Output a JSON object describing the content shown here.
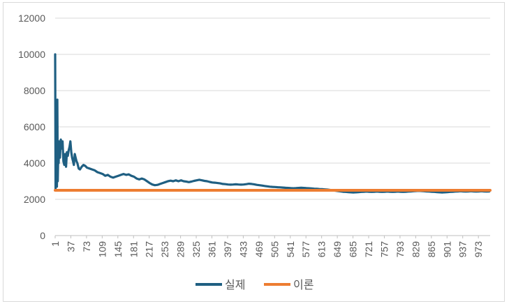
{
  "chart_data": {
    "type": "line",
    "title": "",
    "xlabel": "",
    "ylabel": "",
    "x_start": 1,
    "x_end": 1000,
    "x_tick_step": 36,
    "x_tick_labels": [
      "1",
      "37",
      "73",
      "109",
      "145",
      "181",
      "217",
      "253",
      "289",
      "325",
      "361",
      "397",
      "433",
      "469",
      "505",
      "541",
      "577",
      "613",
      "649",
      "685",
      "721",
      "757",
      "793",
      "829",
      "865",
      "901",
      "937",
      "973"
    ],
    "y_tick_labels": [
      "0",
      "2000",
      "4000",
      "6000",
      "8000",
      "10000",
      "12000"
    ],
    "ylim": [
      0,
      12000
    ],
    "grid": true,
    "legend_position": "bottom",
    "series": [
      {
        "name": "실제",
        "color": "#1f5f82",
        "points": [
          [
            1,
            10000
          ],
          [
            2,
            2600
          ],
          [
            3,
            3500
          ],
          [
            4,
            7400
          ],
          [
            5,
            2700
          ],
          [
            6,
            7500
          ],
          [
            7,
            3000
          ],
          [
            8,
            4500
          ],
          [
            9,
            4000
          ],
          [
            10,
            5200
          ],
          [
            12,
            4300
          ],
          [
            14,
            5300
          ],
          [
            16,
            4800
          ],
          [
            18,
            5200
          ],
          [
            20,
            4100
          ],
          [
            22,
            3900
          ],
          [
            24,
            4500
          ],
          [
            26,
            3800
          ],
          [
            28,
            4600
          ],
          [
            30,
            4400
          ],
          [
            32,
            4700
          ],
          [
            34,
            4900
          ],
          [
            36,
            5200
          ],
          [
            38,
            4600
          ],
          [
            40,
            4300
          ],
          [
            42,
            4100
          ],
          [
            44,
            3900
          ],
          [
            46,
            4500
          ],
          [
            48,
            4300
          ],
          [
            50,
            4100
          ],
          [
            52,
            4000
          ],
          [
            55,
            3700
          ],
          [
            58,
            3650
          ],
          [
            62,
            3800
          ],
          [
            66,
            3900
          ],
          [
            70,
            3850
          ],
          [
            74,
            3750
          ],
          [
            80,
            3700
          ],
          [
            86,
            3650
          ],
          [
            92,
            3600
          ],
          [
            98,
            3500
          ],
          [
            104,
            3450
          ],
          [
            110,
            3400
          ],
          [
            116,
            3300
          ],
          [
            122,
            3350
          ],
          [
            128,
            3250
          ],
          [
            134,
            3200
          ],
          [
            140,
            3250
          ],
          [
            146,
            3300
          ],
          [
            152,
            3350
          ],
          [
            158,
            3400
          ],
          [
            164,
            3350
          ],
          [
            170,
            3380
          ],
          [
            176,
            3300
          ],
          [
            182,
            3250
          ],
          [
            188,
            3150
          ],
          [
            194,
            3100
          ],
          [
            200,
            3150
          ],
          [
            206,
            3100
          ],
          [
            212,
            3000
          ],
          [
            218,
            2900
          ],
          [
            224,
            2820
          ],
          [
            230,
            2780
          ],
          [
            236,
            2800
          ],
          [
            242,
            2850
          ],
          [
            248,
            2900
          ],
          [
            254,
            2950
          ],
          [
            260,
            3000
          ],
          [
            266,
            3030
          ],
          [
            272,
            3000
          ],
          [
            278,
            3050
          ],
          [
            284,
            3000
          ],
          [
            290,
            3050
          ],
          [
            296,
            3000
          ],
          [
            302,
            2980
          ],
          [
            308,
            2950
          ],
          [
            314,
            2980
          ],
          [
            320,
            3020
          ],
          [
            326,
            3050
          ],
          [
            332,
            3080
          ],
          [
            338,
            3050
          ],
          [
            344,
            3020
          ],
          [
            350,
            3000
          ],
          [
            356,
            2960
          ],
          [
            362,
            2930
          ],
          [
            368,
            2920
          ],
          [
            374,
            2900
          ],
          [
            380,
            2880
          ],
          [
            386,
            2850
          ],
          [
            392,
            2840
          ],
          [
            398,
            2820
          ],
          [
            404,
            2810
          ],
          [
            410,
            2820
          ],
          [
            416,
            2830
          ],
          [
            422,
            2820
          ],
          [
            428,
            2810
          ],
          [
            434,
            2820
          ],
          [
            440,
            2840
          ],
          [
            446,
            2860
          ],
          [
            452,
            2850
          ],
          [
            458,
            2830
          ],
          [
            464,
            2800
          ],
          [
            470,
            2780
          ],
          [
            476,
            2760
          ],
          [
            482,
            2740
          ],
          [
            488,
            2720
          ],
          [
            494,
            2700
          ],
          [
            500,
            2690
          ],
          [
            506,
            2680
          ],
          [
            512,
            2670
          ],
          [
            518,
            2660
          ],
          [
            524,
            2650
          ],
          [
            530,
            2640
          ],
          [
            536,
            2630
          ],
          [
            542,
            2620
          ],
          [
            548,
            2610
          ],
          [
            554,
            2620
          ],
          [
            560,
            2630
          ],
          [
            566,
            2640
          ],
          [
            572,
            2630
          ],
          [
            578,
            2620
          ],
          [
            584,
            2610
          ],
          [
            590,
            2600
          ],
          [
            596,
            2590
          ],
          [
            602,
            2580
          ],
          [
            608,
            2570
          ],
          [
            614,
            2560
          ],
          [
            620,
            2550
          ],
          [
            626,
            2540
          ],
          [
            632,
            2520
          ],
          [
            638,
            2500
          ],
          [
            644,
            2480
          ],
          [
            650,
            2460
          ],
          [
            656,
            2440
          ],
          [
            662,
            2420
          ],
          [
            668,
            2410
          ],
          [
            674,
            2400
          ],
          [
            680,
            2390
          ],
          [
            686,
            2380
          ],
          [
            692,
            2390
          ],
          [
            698,
            2400
          ],
          [
            704,
            2410
          ],
          [
            710,
            2420
          ],
          [
            716,
            2430
          ],
          [
            722,
            2420
          ],
          [
            728,
            2410
          ],
          [
            734,
            2420
          ],
          [
            740,
            2430
          ],
          [
            746,
            2420
          ],
          [
            752,
            2410
          ],
          [
            758,
            2420
          ],
          [
            764,
            2430
          ],
          [
            770,
            2420
          ],
          [
            776,
            2410
          ],
          [
            782,
            2420
          ],
          [
            788,
            2430
          ],
          [
            794,
            2420
          ],
          [
            800,
            2410
          ],
          [
            806,
            2420
          ],
          [
            812,
            2430
          ],
          [
            818,
            2440
          ],
          [
            824,
            2450
          ],
          [
            830,
            2460
          ],
          [
            836,
            2470
          ],
          [
            842,
            2460
          ],
          [
            848,
            2450
          ],
          [
            854,
            2440
          ],
          [
            860,
            2430
          ],
          [
            866,
            2420
          ],
          [
            872,
            2410
          ],
          [
            878,
            2400
          ],
          [
            884,
            2390
          ],
          [
            890,
            2380
          ],
          [
            896,
            2390
          ],
          [
            902,
            2400
          ],
          [
            908,
            2410
          ],
          [
            914,
            2420
          ],
          [
            920,
            2430
          ],
          [
            926,
            2440
          ],
          [
            932,
            2450
          ],
          [
            938,
            2440
          ],
          [
            944,
            2430
          ],
          [
            950,
            2440
          ],
          [
            956,
            2450
          ],
          [
            962,
            2440
          ],
          [
            968,
            2430
          ],
          [
            974,
            2440
          ],
          [
            980,
            2450
          ],
          [
            986,
            2440
          ],
          [
            992,
            2430
          ],
          [
            998,
            2440
          ]
        ]
      },
      {
        "name": "이론",
        "color": "#ed7d31",
        "points": [
          [
            1,
            2500
          ],
          [
            1000,
            2500
          ]
        ]
      }
    ]
  }
}
